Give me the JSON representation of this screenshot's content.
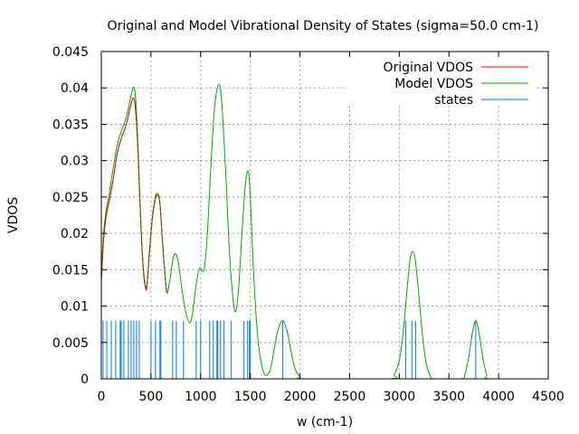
{
  "chart_data": {
    "type": "line",
    "title": "Original and Model Vibrational Density of States (sigma=50.0 cm-1)",
    "xlabel": "w (cm-1)",
    "ylabel": "VDOS",
    "xlim": [
      0,
      4500
    ],
    "ylim": [
      0,
      0.045
    ],
    "xticks": [
      "0",
      "500",
      "1000",
      "1500",
      "2000",
      "2500",
      "3000",
      "3500",
      "4000",
      "4500"
    ],
    "xtick_values": [
      0,
      500,
      1000,
      1500,
      2000,
      2500,
      3000,
      3500,
      4000,
      4500
    ],
    "yticks": [
      "0",
      "0.005",
      "0.01",
      "0.015",
      "0.02",
      "0.025",
      "0.03",
      "0.035",
      "0.04",
      "0.045"
    ],
    "ytick_values": [
      0,
      0.005,
      0.01,
      0.015,
      0.02,
      0.025,
      0.03,
      0.035,
      0.04,
      0.045
    ],
    "grid": true,
    "legend_position": "top-right",
    "series": [
      {
        "name": "Original VDOS",
        "color": "#e00000",
        "points": [
          [
            0,
            0.0135
          ],
          [
            20,
            0.0185
          ],
          [
            45,
            0.022
          ],
          [
            80,
            0.0245
          ],
          [
            120,
            0.0275
          ],
          [
            160,
            0.031
          ],
          [
            200,
            0.033
          ],
          [
            240,
            0.0345
          ],
          [
            270,
            0.036
          ],
          [
            300,
            0.0378
          ],
          [
            325,
            0.0386
          ],
          [
            345,
            0.037
          ],
          [
            370,
            0.031
          ],
          [
            395,
            0.022
          ],
          [
            420,
            0.0155
          ],
          [
            445,
            0.0125
          ],
          [
            460,
            0.0128
          ],
          [
            480,
            0.0165
          ],
          [
            510,
            0.0215
          ],
          [
            540,
            0.0245
          ],
          [
            565,
            0.0253
          ],
          [
            590,
            0.024
          ],
          [
            620,
            0.018
          ],
          [
            650,
            0.0128
          ],
          [
            664,
            0.0118
          ]
        ]
      },
      {
        "name": "Model VDOS",
        "color": "#00aa00",
        "points": [
          [
            0,
            0.0145
          ],
          [
            20,
            0.0195
          ],
          [
            45,
            0.0228
          ],
          [
            80,
            0.0255
          ],
          [
            120,
            0.029
          ],
          [
            160,
            0.0322
          ],
          [
            200,
            0.034
          ],
          [
            240,
            0.0355
          ],
          [
            270,
            0.037
          ],
          [
            300,
            0.039
          ],
          [
            325,
            0.0401
          ],
          [
            345,
            0.0385
          ],
          [
            370,
            0.032
          ],
          [
            395,
            0.0225
          ],
          [
            420,
            0.0158
          ],
          [
            445,
            0.0128
          ],
          [
            460,
            0.013
          ],
          [
            480,
            0.0168
          ],
          [
            510,
            0.0218
          ],
          [
            540,
            0.0248
          ],
          [
            565,
            0.0255
          ],
          [
            590,
            0.0242
          ],
          [
            620,
            0.018
          ],
          [
            650,
            0.0128
          ],
          [
            664,
            0.0118
          ],
          [
            690,
            0.0135
          ],
          [
            720,
            0.0163
          ],
          [
            745,
            0.0172
          ],
          [
            775,
            0.016
          ],
          [
            810,
            0.0125
          ],
          [
            850,
            0.0092
          ],
          [
            890,
            0.0077
          ],
          [
            920,
            0.0092
          ],
          [
            960,
            0.0135
          ],
          [
            990,
            0.0152
          ],
          [
            1015,
            0.0148
          ],
          [
            1040,
            0.0155
          ],
          [
            1070,
            0.0205
          ],
          [
            1100,
            0.0285
          ],
          [
            1140,
            0.0372
          ],
          [
            1180,
            0.0404
          ],
          [
            1210,
            0.0385
          ],
          [
            1250,
            0.029
          ],
          [
            1290,
            0.0175
          ],
          [
            1330,
            0.0105
          ],
          [
            1355,
            0.0094
          ],
          [
            1385,
            0.0128
          ],
          [
            1420,
            0.021
          ],
          [
            1455,
            0.0272
          ],
          [
            1480,
            0.0285
          ],
          [
            1500,
            0.025
          ],
          [
            1530,
            0.0155
          ],
          [
            1570,
            0.0065
          ],
          [
            1610,
            0.0022
          ],
          [
            1650,
            0.0005
          ],
          [
            1700,
            0.0012
          ],
          [
            1740,
            0.004
          ],
          [
            1780,
            0.0068
          ],
          [
            1825,
            0.008
          ],
          [
            1870,
            0.0066
          ],
          [
            1910,
            0.0038
          ],
          [
            1950,
            0.0014
          ],
          [
            2000,
            0.0003
          ],
          [
            2050,
            0
          ],
          [
            2900,
            0
          ],
          [
            2950,
            0.0006
          ],
          [
            3000,
            0.0025
          ],
          [
            3040,
            0.0065
          ],
          [
            3080,
            0.0125
          ],
          [
            3110,
            0.0165
          ],
          [
            3135,
            0.0175
          ],
          [
            3160,
            0.0165
          ],
          [
            3190,
            0.0125
          ],
          [
            3230,
            0.0065
          ],
          [
            3270,
            0.0022
          ],
          [
            3310,
            0.0005
          ],
          [
            3350,
            0
          ],
          [
            3620,
            0
          ],
          [
            3660,
            0.0006
          ],
          [
            3700,
            0.003
          ],
          [
            3735,
            0.0062
          ],
          [
            3770,
            0.008
          ],
          [
            3805,
            0.0062
          ],
          [
            3840,
            0.003
          ],
          [
            3880,
            0.0006
          ],
          [
            3920,
            0
          ],
          [
            4500,
            0
          ]
        ]
      },
      {
        "name": "states",
        "color": "#0077ee",
        "type": "impulses",
        "height": 0.008,
        "x": [
          18,
          55,
          100,
          145,
          190,
          200,
          227,
          273,
          300,
          327,
          355,
          382,
          500,
          545,
          590,
          600,
          718,
          755,
          827,
          955,
          1000,
          1091,
          1127,
          1164,
          1173,
          1200,
          1236,
          1309,
          1436,
          1473,
          1491,
          1500,
          1827,
          3064,
          3127,
          3164,
          3770
        ]
      }
    ]
  }
}
